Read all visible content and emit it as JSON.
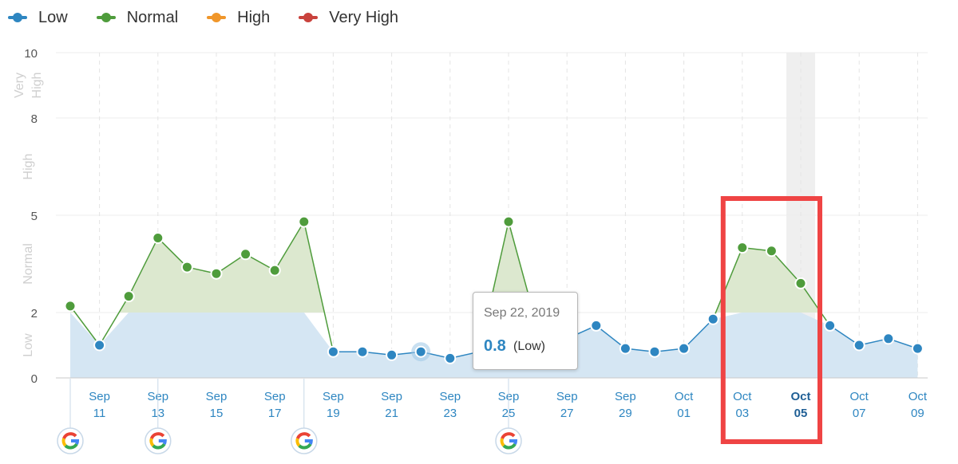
{
  "legend": {
    "items": [
      {
        "label": "Low",
        "color": "#2e86c1"
      },
      {
        "label": "Normal",
        "color": "#4f9c3c"
      },
      {
        "label": "High",
        "color": "#f0962a"
      },
      {
        "label": "Very High",
        "color": "#c9423d"
      }
    ]
  },
  "tooltip": {
    "date": "Sep 22, 2019",
    "value": "0.8",
    "category": "(Low)"
  },
  "chart_data": {
    "type": "area",
    "x": [
      "Sep 10",
      "Sep 11",
      "Sep 12",
      "Sep 13",
      "Sep 14",
      "Sep 15",
      "Sep 16",
      "Sep 17",
      "Sep 18",
      "Sep 19",
      "Sep 20",
      "Sep 21",
      "Sep 22",
      "Sep 23",
      "Sep 24",
      "Sep 25",
      "Sep 26",
      "Sep 27",
      "Sep 28",
      "Sep 29",
      "Sep 30",
      "Oct 01",
      "Oct 02",
      "Oct 03",
      "Oct 04",
      "Oct 05",
      "Oct 06",
      "Oct 07",
      "Oct 08",
      "Oct 09"
    ],
    "values": [
      2.2,
      1.0,
      2.5,
      4.3,
      3.4,
      3.2,
      3.8,
      3.3,
      4.8,
      0.8,
      0.8,
      0.7,
      0.8,
      0.6,
      0.8,
      4.8,
      1.5,
      1.2,
      1.6,
      0.9,
      0.8,
      0.9,
      1.8,
      4.0,
      3.9,
      2.9,
      1.6,
      1.0,
      1.2,
      0.9
    ],
    "ylim": [
      0,
      10
    ],
    "y_tick_labels": [
      "0",
      "2",
      "5",
      "8",
      "10"
    ],
    "y_tick_values": [
      0,
      2,
      5,
      8,
      10
    ],
    "x_tick_labels": [
      [
        "Sep",
        "11"
      ],
      [
        "Sep",
        "13"
      ],
      [
        "Sep",
        "15"
      ],
      [
        "Sep",
        "17"
      ],
      [
        "Sep",
        "19"
      ],
      [
        "Sep",
        "21"
      ],
      [
        "Sep",
        "23"
      ],
      [
        "Sep",
        "25"
      ],
      [
        "Sep",
        "27"
      ],
      [
        "Sep",
        "29"
      ],
      [
        "Oct",
        "01"
      ],
      [
        "Oct",
        "03"
      ],
      [
        "Oct",
        "05"
      ],
      [
        "Oct",
        "07"
      ],
      [
        "Oct",
        "09"
      ]
    ],
    "zone_labels": [
      {
        "text": "Low",
        "from": 0,
        "to": 2
      },
      {
        "text": "Normal",
        "from": 2,
        "to": 5
      },
      {
        "text": "High",
        "from": 5,
        "to": 8
      },
      {
        "text": [
          "Very",
          "High"
        ],
        "from": 8,
        "to": 10
      }
    ],
    "thresholds": {
      "low_max": 2,
      "normal_max": 5,
      "high_max": 8
    },
    "hovered_index": 12,
    "highlighted_index": 25,
    "annotation_box_dates": [
      "Oct 03",
      "Oct 05"
    ],
    "google_update_markers": [
      "Sep 10",
      "Sep 13",
      "Sep 18",
      "Sep 25"
    ],
    "grid": true,
    "legend_position": "top-left"
  }
}
